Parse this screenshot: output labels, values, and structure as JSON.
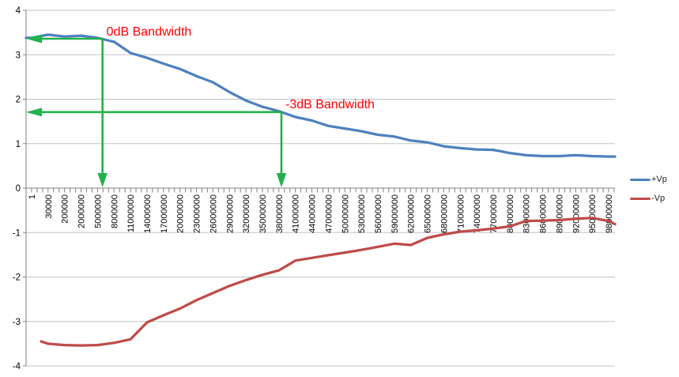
{
  "chart_data": {
    "type": "line",
    "title": "",
    "grid": true,
    "legend_position": "right",
    "x_axis": {
      "tick_label_rotation": -90,
      "categories": [
        "1",
        "30000",
        "200000",
        "2000000",
        "5000000",
        "8000000",
        "11000000",
        "14000000",
        "17000000",
        "20000000",
        "23000000",
        "26000000",
        "29000000",
        "32000000",
        "35000000",
        "38000000",
        "41000000",
        "44000000",
        "47000000",
        "50000000",
        "53000000",
        "56000000",
        "59000000",
        "62000000",
        "65000000",
        "68000000",
        "71000000",
        "74000000",
        "77000000",
        "80000000",
        "83000000",
        "86000000",
        "89000000",
        "92000000",
        "95000000",
        "98000000"
      ]
    },
    "y_axis": {
      "min": -4,
      "max": 4,
      "step": 1
    },
    "colors": {
      "gridline": "#C3C3C3",
      "axis": "#808080",
      "tick": "#808080",
      "axis_label": "#000000"
    },
    "series": [
      {
        "name": "+Vp",
        "color": "#4F81BD",
        "values": [
          3.38,
          3.45,
          3.41,
          3.43,
          3.38,
          3.29,
          3.04,
          2.93,
          2.8,
          2.68,
          2.52,
          2.38,
          2.16,
          1.97,
          1.83,
          1.73,
          1.6,
          1.52,
          1.4,
          1.34,
          1.28,
          1.2,
          1.16,
          1.07,
          1.03,
          0.94,
          0.9,
          0.87,
          0.86,
          0.79,
          0.74,
          0.72,
          0.72,
          0.74,
          0.72,
          0.71
        ],
        "edge_start": 3.38,
        "edge_end": 0.71
      },
      {
        "name": "-Vp",
        "color": "#BE4B48",
        "values": [
          -3.45,
          -3.5,
          -3.53,
          -3.54,
          -3.53,
          -3.48,
          -3.4,
          -3.02,
          -2.86,
          -2.71,
          -2.52,
          -2.36,
          -2.2,
          -2.07,
          -1.95,
          -1.85,
          -1.63,
          -1.57,
          -1.51,
          -1.45,
          -1.39,
          -1.32,
          -1.25,
          -1.28,
          -1.12,
          -1.04,
          -0.98,
          -0.95,
          -0.91,
          -0.86,
          -0.74,
          -0.73,
          -0.72,
          -0.69,
          -0.67,
          -0.74
        ],
        "edge_start": null,
        "edge_end": -0.81
      }
    ],
    "annotations": [
      {
        "label": "0dB Bandwidth",
        "text_color": "#FF0000",
        "arrow_color": "#22B14C",
        "y_value": 3.36,
        "x_index": 4.3
      },
      {
        "label": "-3dB Bandwidth",
        "text_color": "#FF0000",
        "arrow_color": "#22B14C",
        "y_value": 1.71,
        "x_index": 15.15
      }
    ]
  }
}
